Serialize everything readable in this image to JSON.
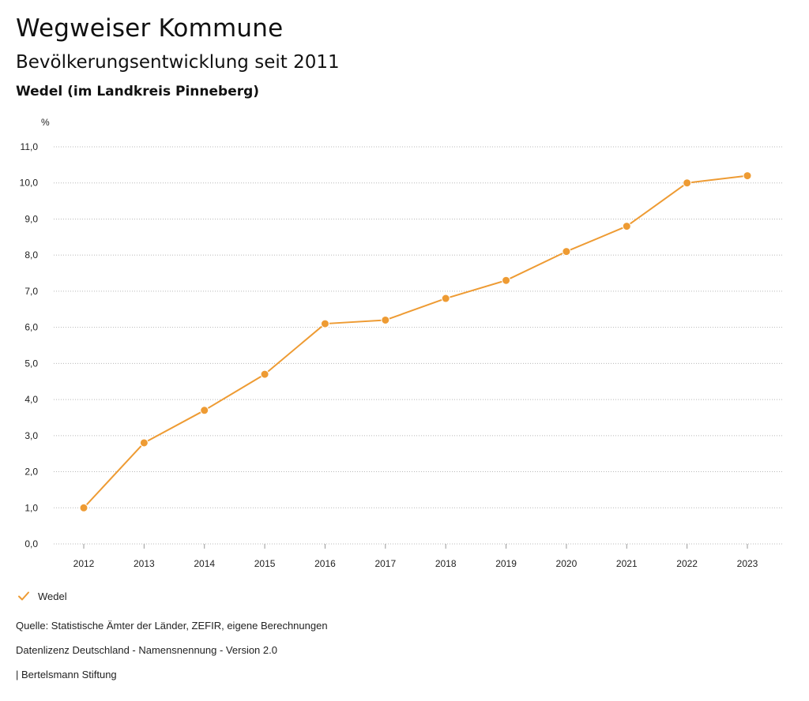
{
  "page": {
    "title": "Wegweiser Kommune",
    "subtitle": "Bevölkerungsentwicklung seit 2011",
    "region": "Wedel (im Landkreis Pinneberg)"
  },
  "legend": {
    "series_name": "Wedel",
    "icon": "check-icon"
  },
  "footer": {
    "source": "Quelle: Statistische Ämter der Länder, ZEFIR, eigene Berechnungen",
    "license": "Datenlizenz Deutschland - Namensnennung - Version 2.0",
    "publisher": "| Bertelsmann Stiftung"
  },
  "colors": {
    "series": "#EE9B33",
    "grid": "#B8B8B8",
    "text": "#222222"
  },
  "chart_data": {
    "type": "line",
    "title": "Bevölkerungsentwicklung seit 2011",
    "xlabel": "",
    "ylabel": "%",
    "categories": [
      "2012",
      "2013",
      "2014",
      "2015",
      "2016",
      "2017",
      "2018",
      "2019",
      "2020",
      "2021",
      "2022",
      "2023"
    ],
    "series": [
      {
        "name": "Wedel",
        "values": [
          1.0,
          2.8,
          3.7,
          4.7,
          6.1,
          6.2,
          6.8,
          7.3,
          8.1,
          8.8,
          10.0,
          10.2
        ]
      }
    ],
    "ylim": [
      0,
      11
    ],
    "yticks": [
      0,
      1,
      2,
      3,
      4,
      5,
      6,
      7,
      8,
      9,
      10,
      11
    ],
    "ytick_labels": [
      "0,0",
      "1,0",
      "2,0",
      "3,0",
      "4,0",
      "5,0",
      "6,0",
      "7,0",
      "8,0",
      "9,0",
      "10,0",
      "11,0"
    ],
    "grid": true,
    "legend_position": "bottom-left"
  }
}
